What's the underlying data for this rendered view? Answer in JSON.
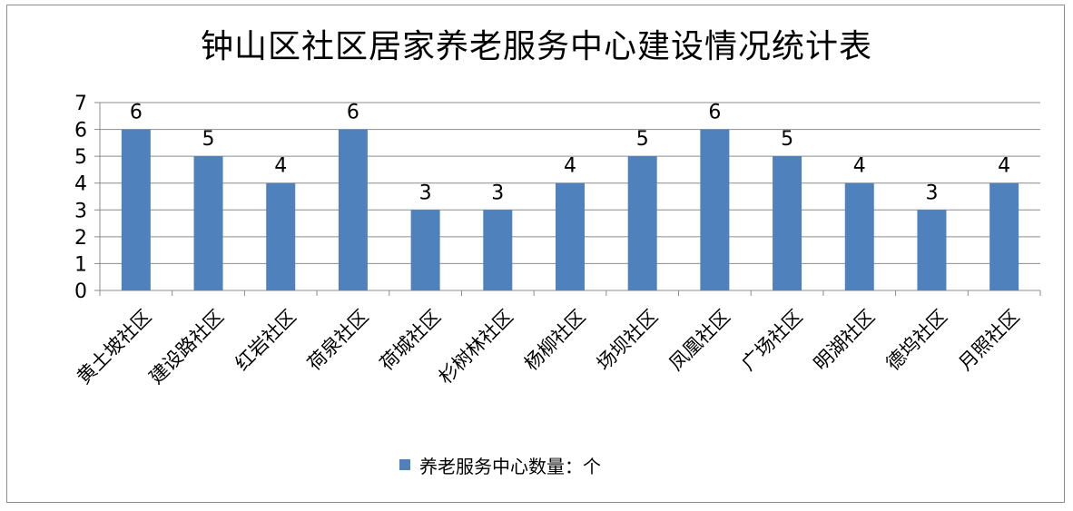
{
  "chart_data": {
    "type": "bar",
    "title": "钟山区社区居家养老服务中心建设情况统计表",
    "categories": [
      "黄土坡社区",
      "建设路社区",
      "红岩社区",
      "荷泉社区",
      "荷城社区",
      "杉树林社区",
      "杨柳社区",
      "场坝社区",
      "凤凰社区",
      "广场社区",
      "明湖社区",
      "德坞社区",
      "月照社区"
    ],
    "series": [
      {
        "name": "养老服务中心数量：个",
        "values": [
          6,
          5,
          4,
          6,
          3,
          3,
          4,
          5,
          6,
          5,
          4,
          3,
          4
        ],
        "color": "#4f81bd"
      }
    ],
    "ylim": [
      0,
      7
    ],
    "yticks": [
      "0",
      "1",
      "2",
      "3",
      "4",
      "5",
      "6",
      "7"
    ],
    "grid": true,
    "data_labels": true,
    "legend_position": "bottom"
  }
}
